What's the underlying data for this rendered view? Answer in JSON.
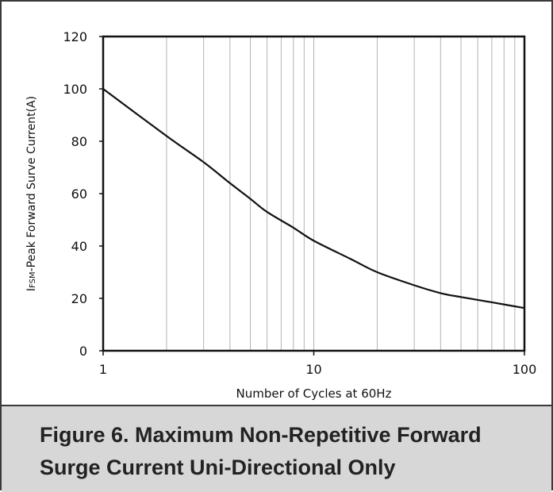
{
  "chart_data": {
    "type": "line",
    "x_scale": "log",
    "xlim": [
      1,
      100
    ],
    "ylim": [
      0,
      120
    ],
    "x_ticks": [
      1,
      10,
      100
    ],
    "y_ticks": [
      0,
      20,
      40,
      60,
      80,
      100,
      120
    ],
    "x_tick_labels": [
      "1",
      "10",
      "100"
    ],
    "y_tick_labels": [
      "0",
      "20",
      "40",
      "60",
      "80",
      "100",
      "120"
    ],
    "xlabel": "Number of Cycles at 60Hz",
    "ylabel": "IFSM-Peak Forward Surve Current(A)",
    "grid": {
      "x_minor": true,
      "y": false
    },
    "series": [
      {
        "x": [
          1,
          2,
          3,
          4,
          5,
          6,
          8,
          10,
          15,
          20,
          30,
          40,
          50,
          70,
          100
        ],
        "y": [
          100,
          82,
          72,
          64,
          58,
          53,
          47,
          42,
          35,
          30,
          25,
          22,
          20.5,
          18.5,
          16.3
        ]
      }
    ]
  },
  "caption": {
    "line1": "Figure 6. Maximum Non-Repetitive Forward",
    "line2": "Surge Current Uni-Directional Only"
  }
}
